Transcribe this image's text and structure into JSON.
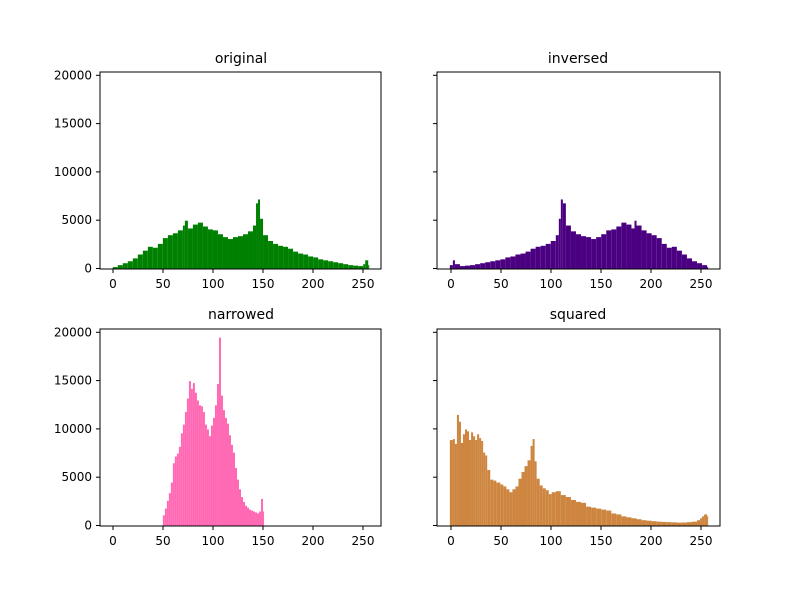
{
  "figure": {
    "background": "#ffffff"
  },
  "chart_data": [
    {
      "type": "bar",
      "title": "original",
      "color": "#008000",
      "x_ticks": [
        "0",
        "50",
        "100",
        "150",
        "200",
        "250"
      ],
      "y_ticks": [
        "0",
        "5000",
        "10000",
        "15000",
        "20000"
      ],
      "xlim": [
        -12.75,
        267.75
      ],
      "ylim": [
        0,
        20400
      ],
      "y_tick_labels_visible": true,
      "grid": false,
      "x": [
        0,
        5,
        10,
        15,
        20,
        25,
        30,
        35,
        40,
        45,
        50,
        55,
        60,
        65,
        70,
        72,
        75,
        80,
        85,
        90,
        95,
        100,
        105,
        110,
        115,
        120,
        125,
        130,
        135,
        140,
        143,
        145,
        147,
        150,
        155,
        160,
        165,
        170,
        175,
        180,
        185,
        190,
        195,
        200,
        205,
        210,
        215,
        220,
        225,
        230,
        235,
        240,
        245,
        250,
        252,
        255
      ],
      "values": [
        200,
        400,
        600,
        800,
        1100,
        1500,
        1900,
        2300,
        2200,
        2600,
        3200,
        3500,
        3700,
        4000,
        4500,
        5000,
        4200,
        4600,
        4800,
        4400,
        4100,
        4000,
        3600,
        3300,
        3100,
        3300,
        3400,
        3600,
        3900,
        4500,
        6800,
        7200,
        5200,
        3500,
        2900,
        2600,
        2400,
        2300,
        2100,
        1800,
        1600,
        1500,
        1300,
        1200,
        1000,
        900,
        800,
        700,
        600,
        500,
        400,
        350,
        300,
        500,
        900,
        400
      ]
    },
    {
      "type": "bar",
      "title": "inversed",
      "color": "#4b0082",
      "x_ticks": [
        "0",
        "50",
        "100",
        "150",
        "200",
        "250"
      ],
      "y_ticks": [
        "0",
        "5000",
        "10000",
        "15000",
        "20000"
      ],
      "xlim": [
        -12.75,
        267.75
      ],
      "ylim": [
        0,
        20400
      ],
      "y_tick_labels_visible": false,
      "grid": false,
      "x": [
        0,
        3,
        5,
        10,
        15,
        20,
        25,
        30,
        35,
        40,
        45,
        50,
        55,
        60,
        65,
        70,
        75,
        80,
        85,
        90,
        95,
        100,
        105,
        108,
        110,
        112,
        115,
        120,
        125,
        130,
        135,
        140,
        145,
        150,
        155,
        160,
        165,
        170,
        175,
        180,
        183,
        185,
        190,
        195,
        200,
        205,
        210,
        215,
        220,
        225,
        230,
        235,
        240,
        245,
        250,
        255
      ],
      "values": [
        400,
        900,
        500,
        300,
        350,
        400,
        500,
        600,
        700,
        800,
        900,
        1000,
        1200,
        1300,
        1500,
        1600,
        1800,
        2100,
        2300,
        2400,
        2600,
        2900,
        3500,
        5200,
        7200,
        6800,
        4500,
        3900,
        3600,
        3400,
        3300,
        3100,
        3300,
        3600,
        4000,
        4100,
        4400,
        4800,
        4600,
        4200,
        5000,
        4500,
        4000,
        3700,
        3500,
        3200,
        2600,
        2200,
        2300,
        1900,
        1500,
        1100,
        800,
        600,
        400,
        200
      ]
    },
    {
      "type": "bar",
      "title": "narrowed",
      "color": "#ff69b4",
      "x_ticks": [
        "0",
        "50",
        "100",
        "150",
        "200",
        "250"
      ],
      "y_ticks": [
        "0",
        "5000",
        "10000",
        "15000",
        "20000"
      ],
      "xlim": [
        -12.75,
        267.75
      ],
      "ylim": [
        0,
        20400
      ],
      "y_tick_labels_visible": true,
      "grid": false,
      "x": [
        50,
        52,
        54,
        56,
        58,
        60,
        62,
        64,
        66,
        68,
        70,
        72,
        74,
        76,
        78,
        80,
        82,
        84,
        86,
        88,
        90,
        92,
        94,
        96,
        98,
        100,
        102,
        104,
        106,
        108,
        110,
        112,
        114,
        116,
        118,
        120,
        122,
        124,
        126,
        128,
        130,
        132,
        134,
        136,
        138,
        140,
        142,
        144,
        146,
        148,
        150
      ],
      "values": [
        1100,
        1800,
        2600,
        3400,
        4500,
        6500,
        7200,
        7500,
        8200,
        9600,
        10500,
        11800,
        13200,
        15000,
        14200,
        14800,
        13800,
        13000,
        12500,
        12400,
        11800,
        10500,
        10000,
        9300,
        10400,
        11200,
        12500,
        14700,
        19500,
        13500,
        12000,
        11200,
        10600,
        9400,
        8400,
        7600,
        6000,
        4800,
        3800,
        3000,
        2500,
        2100,
        1900,
        1700,
        1600,
        1500,
        1400,
        1300,
        1500,
        2800,
        1500
      ]
    },
    {
      "type": "bar",
      "title": "squared",
      "color": "#cd853f",
      "x_ticks": [
        "0",
        "50",
        "100",
        "150",
        "200",
        "250"
      ],
      "y_ticks": [
        "0",
        "5000",
        "10000",
        "15000",
        "20000"
      ],
      "xlim": [
        -12.75,
        267.75
      ],
      "ylim": [
        0,
        20400
      ],
      "y_tick_labels_visible": false,
      "grid": false,
      "x": [
        0,
        3,
        5,
        7,
        9,
        11,
        13,
        15,
        17,
        19,
        21,
        23,
        25,
        27,
        29,
        31,
        33,
        35,
        37,
        40,
        43,
        46,
        50,
        53,
        56,
        59,
        62,
        65,
        68,
        71,
        74,
        77,
        80,
        82,
        84,
        86,
        89,
        92,
        95,
        98,
        101,
        105,
        110,
        115,
        120,
        125,
        130,
        135,
        140,
        145,
        150,
        155,
        160,
        165,
        170,
        175,
        180,
        185,
        190,
        195,
        200,
        205,
        210,
        215,
        220,
        225,
        230,
        235,
        240,
        245,
        248,
        250,
        252,
        255
      ],
      "values": [
        8900,
        9000,
        8500,
        11500,
        10800,
        8600,
        9500,
        10000,
        9800,
        8900,
        9700,
        9300,
        8900,
        9500,
        9100,
        8800,
        7600,
        7300,
        5800,
        4800,
        4700,
        4500,
        4300,
        4100,
        3800,
        3500,
        3800,
        4100,
        4900,
        5600,
        6200,
        6800,
        8300,
        9000,
        6700,
        4900,
        4200,
        3900,
        3700,
        3300,
        3500,
        3600,
        3200,
        3000,
        2700,
        2500,
        2400,
        2000,
        1900,
        1800,
        1700,
        1600,
        1300,
        1200,
        1000,
        900,
        800,
        700,
        600,
        550,
        500,
        450,
        420,
        400,
        380,
        350,
        360,
        400,
        450,
        600,
        800,
        1000,
        1200,
        1000
      ]
    }
  ]
}
